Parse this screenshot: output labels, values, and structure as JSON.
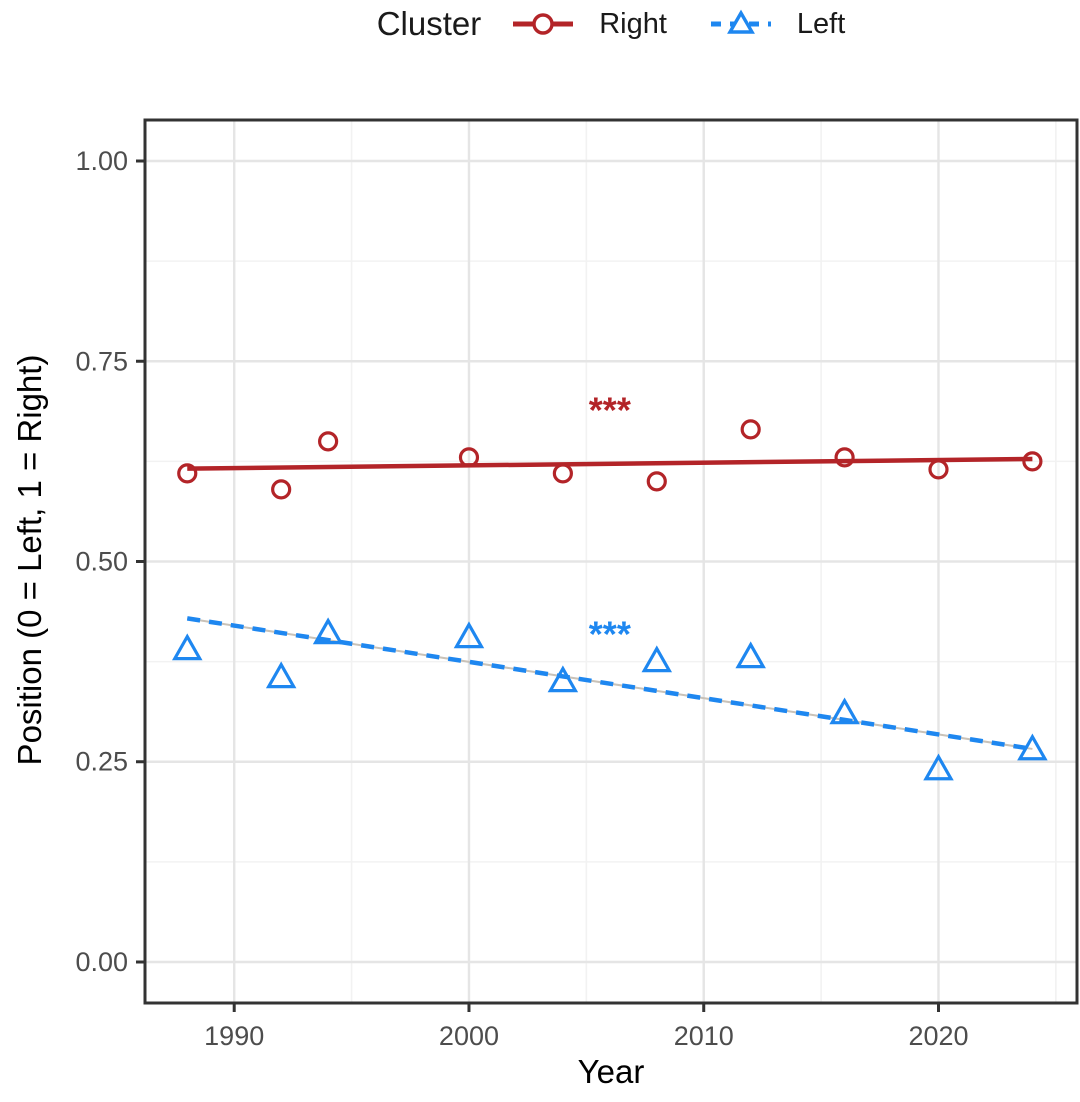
{
  "chart_data": {
    "type": "scatter",
    "title": "",
    "xlabel": "Year",
    "ylabel": "Position (0 = Left, 1 = Right)",
    "legend_title": "Cluster",
    "legend_position": "top-center",
    "grid": true,
    "x_range": [
      1986.2,
      2025.9
    ],
    "y_range": [
      -0.0512,
      1.0512
    ],
    "x_ticks": [
      1990,
      2000,
      2010,
      2020
    ],
    "y_ticks": [
      0.0,
      0.25,
      0.5,
      0.75,
      1.0
    ],
    "y_tick_labels": [
      "0.00",
      "0.25",
      "0.50",
      "0.75",
      "1.00"
    ],
    "x_minor_ticks": [
      1995,
      2005,
      2015,
      2025
    ],
    "y_minor_ticks": [
      0.125,
      0.375,
      0.625,
      0.875
    ],
    "style": {
      "panel_border_color": "#333333",
      "major_grid_color": "#e5e5e5",
      "minor_grid_color": "#f2f2f2",
      "tick_color": "#333333",
      "tick_label_color": "#4d4d4d",
      "trend_underlay_color": "#c9c2b8"
    },
    "series": [
      {
        "name": "Right",
        "color": "#b32428",
        "marker": "circle",
        "line_style": "solid",
        "x": [
          1988,
          1992,
          1994,
          2000,
          2004,
          2008,
          2012,
          2016,
          2020,
          2024
        ],
        "y": [
          0.61,
          0.59,
          0.65,
          0.63,
          0.61,
          0.6,
          0.665,
          0.63,
          0.615,
          0.625
        ],
        "trend": {
          "x1": 1988,
          "y1": 0.616,
          "x2": 2024,
          "y2": 0.628
        },
        "annotation": {
          "text": "***",
          "x": 2006,
          "y": 0.69
        }
      },
      {
        "name": "Left",
        "color": "#1e87f0",
        "marker": "triangle",
        "line_style": "dashed",
        "x": [
          1988,
          1992,
          1994,
          2000,
          2004,
          2008,
          2012,
          2016,
          2020,
          2024
        ],
        "y": [
          0.39,
          0.355,
          0.41,
          0.405,
          0.35,
          0.375,
          0.38,
          0.31,
          0.24,
          0.265
        ],
        "trend": {
          "x1": 1988,
          "y1": 0.429,
          "x2": 2024,
          "y2": 0.266
        },
        "annotation": {
          "text": "***",
          "x": 2006,
          "y": 0.41
        }
      }
    ]
  }
}
